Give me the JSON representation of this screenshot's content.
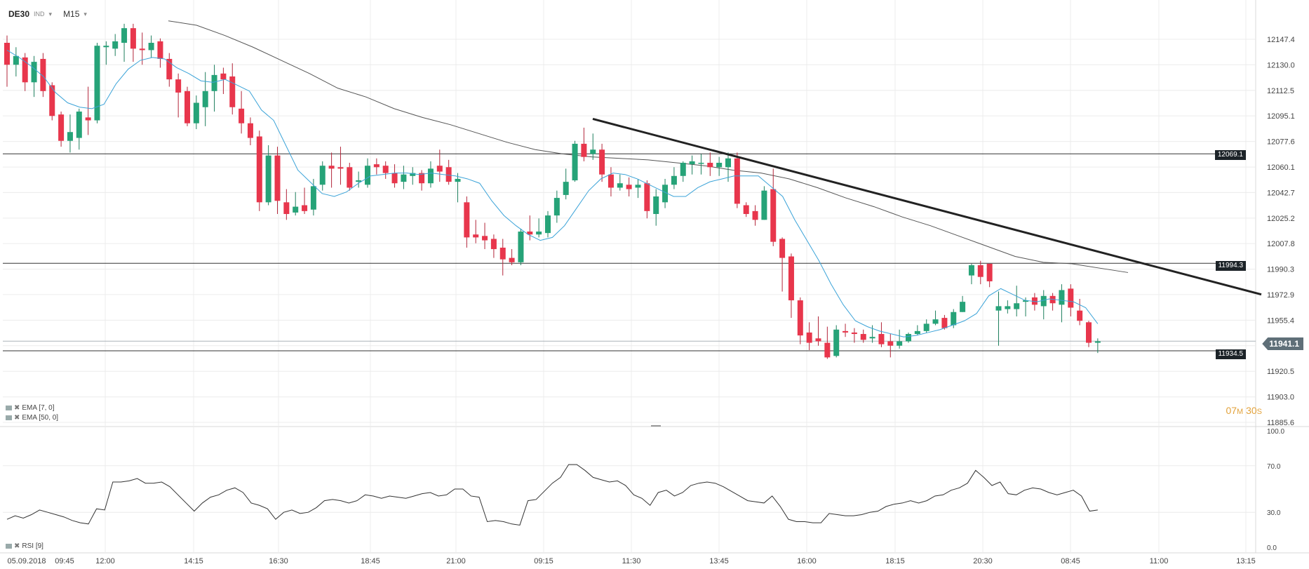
{
  "header": {
    "symbol": "DE30",
    "instrument_type": "IND",
    "timeframe": "M15"
  },
  "indicators": {
    "ema_fast": "EMA [7, 0]",
    "ema_slow": "EMA [50, 0]",
    "rsi": "RSI [9]"
  },
  "timer": {
    "minutes": "07",
    "minutes_unit": "M",
    "seconds": "30",
    "seconds_unit": "S"
  },
  "price_levels": [
    {
      "label": "12069.1",
      "value": 12069.1
    },
    {
      "label": "11994.3",
      "value": 11994.3
    },
    {
      "label": "11934.5",
      "value": 11934.5
    }
  ],
  "current_price": {
    "label": "11941.1",
    "value": 11941.1
  },
  "colors": {
    "up": "#26a378",
    "down": "#e8364c",
    "ema_fast": "#3ba3d8",
    "ema_slow": "#555555",
    "trendline": "#222222",
    "grid": "#ececec"
  },
  "chart_data": {
    "type": "candlestick",
    "price_axis": {
      "ticks": [
        "12147.4",
        "12130.0",
        "12112.5",
        "12095.1",
        "12077.6",
        "12060.1",
        "12042.7",
        "12025.2",
        "12007.8",
        "11990.3",
        "11972.9",
        "11955.4",
        "11938.0",
        "11920.5",
        "11903.0",
        "11885.6"
      ],
      "min": 11885.6,
      "max": 12150.0
    },
    "time_axis": {
      "labels": [
        "05.09.2018",
        "09:45",
        "12:00",
        "14:15",
        "16:30",
        "18:45",
        "21:00",
        "09:15",
        "11:30",
        "13:45",
        "16:00",
        "18:15",
        "20:30",
        "08:45",
        "11:00",
        "13:15"
      ]
    },
    "candles": [
      [
        12145,
        12130,
        12150,
        12115
      ],
      [
        12130,
        12136,
        12142,
        12122
      ],
      [
        12135,
        12118,
        12138,
        12112
      ],
      [
        12118,
        12132,
        12136,
        12108
      ],
      [
        12134,
        12112,
        12138,
        12108
      ],
      [
        12116,
        12095,
        12118,
        12092
      ],
      [
        12096,
        12078,
        12098,
        12074
      ],
      [
        12078,
        12084,
        12096,
        12070
      ],
      [
        12080,
        12098,
        12100,
        12072
      ],
      [
        12094,
        12092,
        12115,
        12082
      ],
      [
        12092,
        12143,
        12145,
        12090
      ],
      [
        12142,
        12143,
        12146,
        12130
      ],
      [
        12141,
        12146,
        12151,
        12136
      ],
      [
        12145,
        12155,
        12158,
        12132
      ],
      [
        12155,
        12141,
        12158,
        12132
      ],
      [
        12141,
        12140,
        12152,
        12130
      ],
      [
        12140,
        12145,
        12150,
        12135
      ],
      [
        12146,
        12134,
        12148,
        12128
      ],
      [
        12134,
        12120,
        12138,
        12115
      ],
      [
        12120,
        12111,
        12124,
        12094
      ],
      [
        12112,
        12090,
        12115,
        12088
      ],
      [
        12090,
        12104,
        12109,
        12086
      ],
      [
        12101,
        12112,
        12125,
        12088
      ],
      [
        12112,
        12123,
        12130,
        12098
      ],
      [
        12124,
        12120,
        12128,
        12110
      ],
      [
        12122,
        12101,
        12131,
        12096
      ],
      [
        12100,
        12090,
        12112,
        12083
      ],
      [
        12090,
        12080,
        12094,
        12075
      ],
      [
        12081,
        12036,
        12085,
        12030
      ],
      [
        12036,
        12068,
        12075,
        12034
      ],
      [
        12068,
        12037,
        12074,
        12028
      ],
      [
        12036,
        12028,
        12045,
        12024
      ],
      [
        12029,
        12033,
        12043,
        12027
      ],
      [
        12034,
        12030,
        12046,
        12028
      ],
      [
        12031,
        12047,
        12052,
        12027
      ],
      [
        12048,
        12061,
        12064,
        12044
      ],
      [
        12061,
        12059,
        12070,
        12046
      ],
      [
        12060,
        12059,
        12074,
        12048
      ],
      [
        12060,
        12046,
        12063,
        12044
      ],
      [
        12050,
        12051,
        12057,
        12046
      ],
      [
        12048,
        12061,
        12066,
        12046
      ],
      [
        12062,
        12060,
        12066,
        12055
      ],
      [
        12061,
        12056,
        12064,
        12052
      ],
      [
        12056,
        12049,
        12062,
        12046
      ],
      [
        12050,
        12055,
        12061,
        12045
      ],
      [
        12054,
        12056,
        12060,
        12048
      ],
      [
        12056,
        12049,
        12058,
        12044
      ],
      [
        12049,
        12059,
        12064,
        12046
      ],
      [
        12061,
        12057,
        12072,
        12050
      ],
      [
        12060,
        12050,
        12065,
        12048
      ],
      [
        12050,
        12052,
        12056,
        12036
      ],
      [
        12036,
        12012,
        12040,
        12005
      ],
      [
        12014,
        12012,
        12024,
        12008
      ],
      [
        12013,
        12010,
        12022,
        12004
      ],
      [
        12011,
        12004,
        12014,
        11998
      ],
      [
        12005,
        11997,
        12011,
        11986
      ],
      [
        11998,
        11995,
        12004,
        11993
      ],
      [
        11995,
        12016,
        12018,
        11993
      ],
      [
        12016,
        12014,
        12027,
        12010
      ],
      [
        12014,
        12016,
        12025,
        12012
      ],
      [
        12015,
        12027,
        12030,
        12012
      ],
      [
        12027,
        12039,
        12044,
        12022
      ],
      [
        12041,
        12050,
        12059,
        12038
      ],
      [
        12051,
        12076,
        12078,
        12050
      ],
      [
        12076,
        12067,
        12087,
        12064
      ],
      [
        12069,
        12072,
        12083,
        12065
      ],
      [
        12072,
        12055,
        12076,
        12050
      ],
      [
        12055,
        12046,
        12060,
        12040
      ],
      [
        12046,
        12049,
        12055,
        12044
      ],
      [
        12048,
        12045,
        12053,
        12040
      ],
      [
        12046,
        12048,
        12052,
        12039
      ],
      [
        12049,
        12030,
        12051,
        12025
      ],
      [
        12028,
        12040,
        12045,
        12020
      ],
      [
        12036,
        12048,
        12052,
        12032
      ],
      [
        12048,
        12054,
        12060,
        12045
      ],
      [
        12054,
        12063,
        12064,
        12050
      ],
      [
        12062,
        12064,
        12068,
        12055
      ],
      [
        12063,
        12063,
        12069,
        12055
      ],
      [
        12063,
        12060,
        12070,
        12054
      ],
      [
        12060,
        12063,
        12067,
        12054
      ],
      [
        12060,
        12066,
        12070,
        12050
      ],
      [
        12066,
        12035,
        12070,
        12032
      ],
      [
        12034,
        12028,
        12036,
        12026
      ],
      [
        12030,
        12024,
        12034,
        12020
      ],
      [
        12024,
        12044,
        12047,
        12024
      ],
      [
        12045,
        12009,
        12059,
        12006
      ],
      [
        12011,
        11998,
        12012,
        11975
      ],
      [
        11999,
        11969,
        12001,
        11957
      ],
      [
        11969,
        11945,
        11971,
        11939
      ],
      [
        11947,
        11940,
        11954,
        11935
      ],
      [
        11943,
        11941,
        11958,
        11938
      ],
      [
        11940,
        11930,
        11951,
        11929
      ],
      [
        11931,
        11949,
        11952,
        11930
      ],
      [
        11948,
        11947,
        11953,
        11944
      ],
      [
        11947,
        11946,
        11950,
        11940
      ],
      [
        11946,
        11942,
        11949,
        11940
      ],
      [
        11943,
        11944,
        11952,
        11940
      ],
      [
        11946,
        11939,
        11954,
        11937
      ],
      [
        11941,
        11938,
        11946,
        11930
      ],
      [
        11938,
        11941,
        11949,
        11936
      ],
      [
        11941,
        11946,
        11947,
        11940
      ],
      [
        11946,
        11948,
        11952,
        11945
      ],
      [
        11948,
        11953,
        11956,
        11947
      ],
      [
        11953,
        11956,
        11962,
        11952
      ],
      [
        11957,
        11950,
        11959,
        11949
      ],
      [
        11952,
        11961,
        11963,
        11950
      ],
      [
        11961,
        11968,
        11972,
        11961
      ],
      [
        11986,
        11993,
        11994,
        11980
      ],
      [
        11993,
        11985,
        11996,
        11980
      ],
      [
        11994,
        11982,
        11993,
        11978
      ],
      [
        11962,
        11965,
        11975,
        11938
      ],
      [
        11963,
        11965,
        11969,
        11960
      ],
      [
        11963,
        11967,
        11979,
        11958
      ],
      [
        11968,
        11969,
        11971,
        11958
      ],
      [
        11971,
        11966,
        11974,
        11962
      ],
      [
        11965,
        11972,
        11976,
        11956
      ],
      [
        11972,
        11967,
        11974,
        11962
      ],
      [
        11966,
        11976,
        11980,
        11954
      ],
      [
        11977,
        11964,
        11980,
        11958
      ],
      [
        11962,
        11955,
        11970,
        11952
      ],
      [
        11954,
        11940,
        11955,
        11937
      ],
      [
        11940,
        11941,
        11943,
        11933
      ]
    ],
    "ema_7": [
      12140,
      12135,
      12129,
      12122,
      12111,
      12104,
      12101,
      12100,
      12103,
      12117,
      12127,
      12133,
      12135,
      12134,
      12128,
      12124,
      12119,
      12118,
      12120,
      12116,
      12112,
      12099,
      12092,
      12075,
      12058,
      12050,
      12042,
      12040,
      12043,
      12049,
      12054,
      12055,
      12056,
      12056,
      12055,
      12056,
      12055,
      12054,
      12052,
      12049,
      12037,
      12027,
      12020,
      12014,
      12010,
      12012,
      12020,
      12032,
      12044,
      12052,
      12056,
      12055,
      12052,
      12048,
      12044,
      12040,
      12040,
      12046,
      12050,
      12052,
      12054,
      12054,
      12054,
      12047,
      12040,
      12024,
      12010,
      11996,
      11980,
      11966,
      11955,
      11951,
      11948,
      11946,
      11944,
      11945,
      11947,
      11949,
      11952,
      11955,
      11960,
      11972,
      11977,
      11973,
      11969,
      11968,
      11970,
      11969,
      11968,
      11964,
      11953
    ],
    "ema_50": [
      12160,
      12157,
      12150,
      12142,
      12133,
      12124,
      12114,
      12108,
      12100,
      12094,
      12089,
      12083,
      12077,
      12072,
      12069,
      12067,
      12066,
      12065,
      12063,
      12061,
      12058,
      12056,
      12052,
      12046,
      12039,
      12033,
      12026,
      12020,
      12013,
      12006,
      11999,
      11995,
      11994,
      11991,
      11988
    ],
    "trendline": {
      "from": 12093,
      "to": 11973
    },
    "rsi": {
      "range": [
        0,
        100
      ],
      "ticks": [
        "100.0",
        "70.0",
        "30.0",
        "0.0"
      ],
      "values": [
        24,
        27,
        25,
        28,
        32,
        30,
        28,
        26,
        23,
        21,
        20,
        33,
        32,
        56,
        56,
        57,
        59,
        55,
        55,
        56,
        52,
        45,
        38,
        31,
        38,
        43,
        45,
        49,
        51,
        47,
        38,
        36,
        33,
        24,
        30,
        32,
        29,
        30,
        34,
        40,
        41,
        40,
        38,
        40,
        45,
        44,
        42,
        44,
        43,
        42,
        44,
        46,
        47,
        44,
        45,
        50,
        50,
        44,
        43,
        22,
        23,
        22,
        20,
        19,
        40,
        41,
        48,
        55,
        60,
        71,
        71,
        66,
        60,
        58,
        56,
        57,
        53,
        45,
        42,
        36,
        47,
        49,
        44,
        47,
        53,
        55,
        56,
        55,
        52,
        48,
        44,
        40,
        39,
        38,
        44,
        35,
        24,
        22,
        22,
        21,
        21,
        29,
        28,
        27,
        27,
        28,
        30,
        31,
        35,
        37,
        38,
        40,
        38,
        40,
        44,
        45,
        49,
        51,
        55,
        66,
        60,
        53,
        56,
        46,
        45,
        49,
        51,
        50,
        47,
        45,
        47,
        49,
        44,
        31,
        32
      ]
    }
  }
}
